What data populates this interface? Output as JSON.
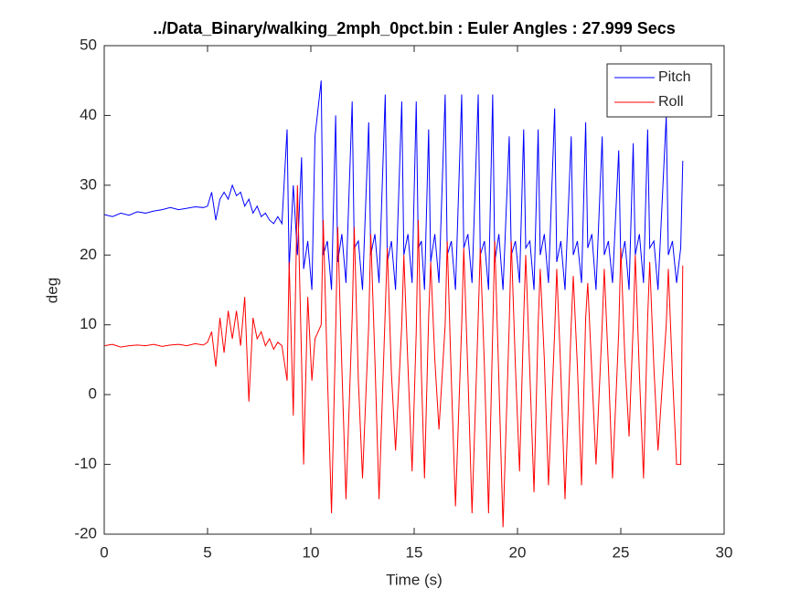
{
  "chart_data": {
    "type": "line",
    "title": "../Data_Binary/walking_2mph_0pct.bin : Euler Angles : 27.999 Secs",
    "xlabel": "Time (s)",
    "ylabel": "deg",
    "xlim": [
      0,
      30
    ],
    "xticks": [
      0,
      5,
      10,
      15,
      20,
      25,
      30
    ],
    "ylim": [
      -20,
      50
    ],
    "yticks": [
      -20,
      -10,
      0,
      10,
      20,
      30,
      40,
      50
    ],
    "legend": "top-right",
    "x": [
      0,
      0.4,
      0.8,
      1.2,
      1.6,
      2,
      2.4,
      2.8,
      3.2,
      3.6,
      4,
      4.4,
      4.8,
      5,
      5.2,
      5.4,
      5.6,
      5.8,
      6,
      6.2,
      6.4,
      6.6,
      6.8,
      7,
      7.2,
      7.4,
      7.6,
      7.8,
      8,
      8.2,
      8.4,
      8.6,
      8.85,
      8.95,
      9.15,
      9.35,
      9.55,
      9.65,
      9.85,
      10.05,
      10.2,
      10.5,
      10.6,
      10.8,
      11.0,
      11.2,
      11.3,
      11.5,
      11.7,
      12.0,
      12.1,
      12.3,
      12.5,
      12.8,
      12.9,
      13.1,
      13.3,
      13.6,
      13.7,
      13.9,
      14.1,
      14.4,
      14.5,
      14.7,
      14.9,
      15.1,
      15.2,
      15.35,
      15.5,
      15.7,
      15.8,
      16.0,
      16.2,
      16.5,
      16.6,
      16.8,
      17.0,
      17.3,
      17.4,
      17.6,
      17.8,
      18.1,
      18.2,
      18.4,
      18.6,
      18.8,
      18.9,
      19.1,
      19.3,
      19.6,
      19.7,
      19.9,
      20.1,
      20.3,
      20.4,
      20.6,
      20.8,
      21.0,
      21.1,
      21.3,
      21.5,
      21.8,
      21.9,
      22.1,
      22.3,
      22.6,
      22.7,
      22.9,
      23.1,
      23.3,
      23.4,
      23.6,
      23.8,
      24.1,
      24.2,
      24.4,
      24.6,
      24.9,
      25.0,
      25.2,
      25.4,
      25.6,
      25.7,
      25.9,
      26.1,
      26.3,
      26.4,
      26.6,
      26.8,
      27.2,
      27.3,
      27.5,
      27.7,
      27.9,
      28.0
    ],
    "series": [
      {
        "name": "Pitch",
        "color": "#0000ff",
        "values": [
          25.8,
          25.5,
          26,
          25.7,
          26.2,
          26,
          26.3,
          26.5,
          26.8,
          26.5,
          26.7,
          26.9,
          26.8,
          27,
          29,
          25,
          28,
          29,
          28,
          30,
          28.5,
          29,
          27,
          28,
          26,
          27,
          25.5,
          26,
          25,
          24.5,
          25.5,
          24.5,
          38,
          18,
          30,
          20,
          34,
          18,
          22,
          15,
          37,
          45,
          20,
          22,
          15,
          40,
          19,
          23,
          16,
          42,
          21,
          22,
          15,
          39,
          20,
          23,
          16,
          43,
          19,
          22,
          15,
          42,
          20,
          23,
          16,
          42,
          21,
          22,
          15,
          38,
          19,
          23,
          16,
          43,
          20,
          22,
          15,
          43,
          21,
          23,
          16,
          43,
          20,
          22,
          15,
          43,
          19,
          23,
          15,
          37,
          20,
          22,
          16,
          38,
          21,
          22,
          15,
          38,
          20,
          23,
          16,
          41,
          19,
          22,
          15,
          37,
          20,
          22,
          16,
          39,
          21,
          23,
          15,
          37,
          20,
          22,
          16,
          35,
          19,
          22,
          15,
          36,
          20,
          23,
          16,
          38,
          21,
          22,
          15,
          40,
          20,
          22,
          16,
          21,
          33.5
        ]
      },
      {
        "name": "Roll",
        "color": "#ff0000",
        "values": [
          7,
          7.2,
          6.8,
          7,
          7.1,
          7,
          7.2,
          6.9,
          7.1,
          7.2,
          7,
          7.3,
          7.1,
          7.5,
          9,
          4,
          11,
          6,
          12,
          8,
          12,
          7,
          14,
          -1,
          11,
          8,
          9,
          7,
          8,
          6.5,
          7.5,
          7,
          2,
          19,
          -3,
          30,
          5,
          -10,
          14,
          2,
          8,
          10,
          25,
          3,
          -17,
          9,
          24,
          4,
          -15,
          11,
          24,
          2,
          -12,
          10,
          23,
          5,
          -15,
          12,
          21,
          3,
          -8,
          10,
          20,
          4,
          -11,
          9,
          25,
          3,
          -12,
          11,
          19,
          5,
          -5,
          10,
          22,
          2,
          -16,
          10,
          21,
          3,
          -17,
          11,
          21,
          4,
          -17,
          9,
          22,
          2,
          -19,
          10,
          22,
          4,
          -11,
          11,
          20,
          3,
          -14,
          10,
          18,
          5,
          -13,
          9,
          18,
          3,
          -15,
          10,
          17,
          4,
          -13,
          11,
          16,
          3,
          -10,
          10,
          18,
          4,
          -12,
          9,
          21,
          5,
          -6,
          10,
          20,
          3,
          -12,
          11,
          19,
          4,
          -8,
          10,
          18,
          3,
          -10,
          -10,
          18.5
        ]
      }
    ]
  }
}
